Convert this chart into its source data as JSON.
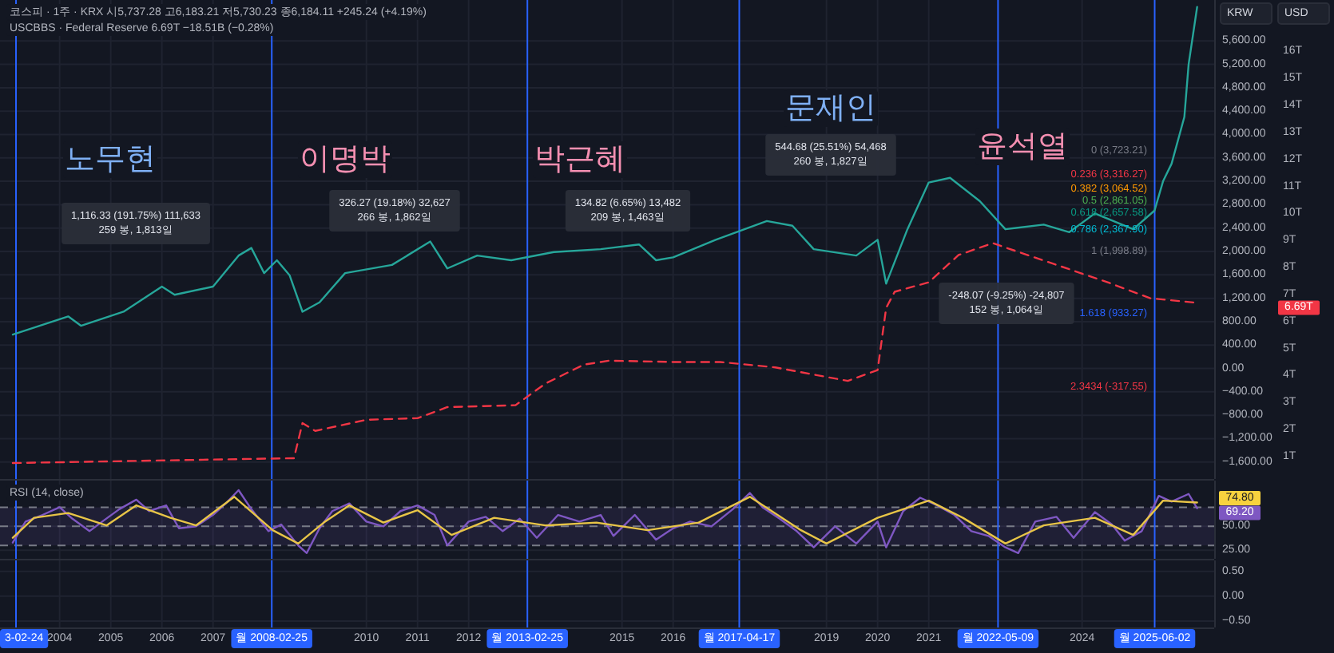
{
  "chart_data": [
    {
      "type": "line",
      "ylabel": "KRW",
      "y2label": "USD",
      "grid": true,
      "tick_labels": "y",
      "xlim": [
        "2002-11",
        "2026-08"
      ],
      "ylim": [
        -1890,
        6300
      ],
      "yticks": [
        {
          "value": 5600,
          "label": "5,600.00"
        },
        {
          "value": 5200,
          "label": "5,200.00"
        },
        {
          "value": 4800,
          "label": "4,800.00"
        },
        {
          "value": 4400,
          "label": "4,400.00"
        },
        {
          "value": 4000,
          "label": "4,000.00"
        },
        {
          "value": 3600,
          "label": "3,600.00"
        },
        {
          "value": 3200,
          "label": "3,200.00"
        },
        {
          "value": 2800,
          "label": "2,800.00"
        },
        {
          "value": 2400,
          "label": "2,400.00"
        },
        {
          "value": 2000,
          "label": "2,000.00"
        },
        {
          "value": 1600,
          "label": "1,600.00"
        },
        {
          "value": 1200,
          "label": "1,200.00"
        },
        {
          "value": 800,
          "label": "800.00"
        },
        {
          "value": 400,
          "label": "400.00"
        },
        {
          "value": 0,
          "label": "0.00"
        },
        {
          "value": -400,
          "label": "−400.00"
        },
        {
          "value": -800,
          "label": "−800.00"
        },
        {
          "value": -1200,
          "label": "−1,200.00"
        },
        {
          "value": -1600,
          "label": "−1,600.00"
        }
      ],
      "y2lim": [
        0.17,
        17.9
      ],
      "y2ticks": [
        {
          "value": 16,
          "label": "16T"
        },
        {
          "value": 15,
          "label": "15T"
        },
        {
          "value": 14,
          "label": "14T"
        },
        {
          "value": 13,
          "label": "13T"
        },
        {
          "value": 12,
          "label": "12T"
        },
        {
          "value": 11,
          "label": "11T"
        },
        {
          "value": 10,
          "label": "10T"
        },
        {
          "value": 9,
          "label": "9T"
        },
        {
          "value": 8,
          "label": "8T"
        },
        {
          "value": 7,
          "label": "7T"
        },
        {
          "value": 6,
          "label": "6T"
        },
        {
          "value": 5,
          "label": "5T"
        },
        {
          "value": 4,
          "label": "4T"
        },
        {
          "value": 3,
          "label": "3T"
        },
        {
          "value": 2,
          "label": "2T"
        },
        {
          "value": 1,
          "label": "1T"
        }
      ],
      "ref_lines": [
        {
          "axis": "x",
          "value": "2003-02-24",
          "color": "#2962ff"
        },
        {
          "axis": "x",
          "value": "2008-02-25",
          "color": "#2962ff"
        },
        {
          "axis": "x",
          "value": "2013-02-25",
          "color": "#2962ff"
        },
        {
          "axis": "x",
          "value": "2017-04-17",
          "color": "#2962ff"
        },
        {
          "axis": "x",
          "value": "2022-05-09",
          "color": "#2962ff"
        },
        {
          "axis": "x",
          "value": "2025-06-02",
          "color": "#2962ff"
        }
      ],
      "series": [
        {
          "color": "#26a69a",
          "x": [
            "2003-02",
            "2004-03",
            "2004-06",
            "2005-04",
            "2006-01",
            "2006-04",
            "2007-01",
            "2007-07",
            "2007-10",
            "2008-01",
            "2008-04",
            "2008-07",
            "2008-10",
            "2009-02",
            "2009-08",
            "2010-07",
            "2011-04",
            "2011-08",
            "2012-03",
            "2012-11",
            "2013-09",
            "2014-08",
            "2015-05",
            "2015-09",
            "2016-01",
            "2016-11",
            "2017-11",
            "2018-05",
            "2018-10",
            "2019-08",
            "2020-01",
            "2020-03",
            "2020-08",
            "2021-01",
            "2021-06",
            "2022-01",
            "2022-07",
            "2023-04",
            "2023-10",
            "2024-04",
            "2025-01",
            "2025-06",
            "2025-08",
            "2025-10",
            "2026-01",
            "2026-02",
            "2026-04"
          ],
          "values": [
            580,
            890,
            730,
            970,
            1400,
            1260,
            1400,
            1930,
            2060,
            1630,
            1850,
            1590,
            970,
            1130,
            1630,
            1770,
            2170,
            1710,
            1930,
            1850,
            1990,
            2040,
            2120,
            1850,
            1900,
            2200,
            2520,
            2440,
            2040,
            1930,
            2200,
            1450,
            2380,
            3180,
            3260,
            2860,
            2380,
            2460,
            2330,
            2650,
            2380,
            2700,
            3200,
            3500,
            4300,
            5200,
            6180
          ]
        },
        {
          "color": "#f23645",
          "axis": "y2",
          "line_style": "dashed",
          "x": [
            "2003-02",
            "2008-08",
            "2008-10",
            "2009-01",
            "2010-01",
            "2011-01",
            "2011-08",
            "2012-12",
            "2013-07",
            "2014-04",
            "2014-10",
            "2016-01",
            "2016-12",
            "2018-01",
            "2019-06",
            "2020-01",
            "2020-03",
            "2020-05",
            "2021-01",
            "2021-08",
            "2022-04",
            "2024-07",
            "2025-05",
            "2026-04"
          ],
          "values": [
            0.76,
            0.94,
            2.24,
            1.95,
            2.36,
            2.42,
            2.83,
            2.9,
            3.7,
            4.4,
            4.55,
            4.5,
            4.5,
            4.3,
            3.8,
            4.2,
            6.5,
            7.1,
            7.45,
            8.46,
            8.9,
            7.45,
            6.86,
            6.69
          ]
        }
      ],
      "annotations": [
        "코스피 · 1주 · KRX 시5,737.28 고6,183.21 저5,730.23 종6,184.11 +245.24 (+4.19%)",
        "USCBBS · Federal Reserve 6.69T −18.51B (−0.28%)",
        "노무현",
        "이명박",
        "박근혜",
        "문재인",
        "윤석열",
        "1,116.33 (191.75%) 111,633\n259 봉, 1,813일",
        "326.27 (19.18%) 32,627\n266 봉, 1,862일",
        "134.82 (6.65%) 13,482\n209 봉, 1,463일",
        "544.68 (25.51%) 54,468\n260 봉, 1,827일",
        "-248.07 (-9.25%) -24,807\n152 봉, 1,064일",
        "0 (3,723.21)",
        "0.236 (3,316.27)",
        "0.382 (3,064.52)",
        "0.5 (2,861.05)",
        "0.618 (2,657.58)",
        "0.786 (2,367.90)",
        "1 (1,998.89)",
        "1.618 (933.27)",
        "2.3434 (-317.55)",
        "6.69T"
      ]
    },
    {
      "type": "line",
      "title": "RSI (14, close)",
      "grid": true,
      "tick_labels": "y",
      "xlim": [
        "2002-11",
        "2026-08"
      ],
      "ylim": [
        16,
        98
      ],
      "yticks": [
        {
          "value": 50,
          "label": "50.00"
        },
        {
          "value": 25,
          "label": "25.00"
        }
      ],
      "bands": [
        {
          "axis": "y",
          "from": 30,
          "to": 70,
          "color": "#7e57c2"
        }
      ],
      "ref_lines": [
        {
          "axis": "y",
          "value": 70,
          "color": "#787b86",
          "line_style": "dashed"
        },
        {
          "axis": "y",
          "value": 50,
          "color": "#787b86",
          "line_style": "dashed"
        },
        {
          "axis": "y",
          "value": 30,
          "color": "#787b86",
          "line_style": "dashed"
        },
        {
          "axis": "x",
          "value": "2003-02-24",
          "color": "#2962ff"
        },
        {
          "axis": "x",
          "value": "2008-02-25",
          "color": "#2962ff"
        },
        {
          "axis": "x",
          "value": "2013-02-25",
          "color": "#2962ff"
        },
        {
          "axis": "x",
          "value": "2017-04-17",
          "color": "#2962ff"
        },
        {
          "axis": "x",
          "value": "2022-05-09",
          "color": "#2962ff"
        },
        {
          "axis": "x",
          "value": "2025-06-02",
          "color": "#2962ff"
        }
      ],
      "series": [
        {
          "color": "#7e57c2",
          "x": [
            "2003-02",
            "2003-05",
            "2003-09",
            "2004-01",
            "2004-04",
            "2004-08",
            "2004-11",
            "2005-03",
            "2005-07",
            "2005-10",
            "2006-02",
            "2006-05",
            "2006-09",
            "2007-01",
            "2007-04",
            "2007-07",
            "2007-10",
            "2008-02",
            "2008-05",
            "2008-09",
            "2008-11",
            "2009-02",
            "2009-05",
            "2009-09",
            "2010-01",
            "2010-05",
            "2010-09",
            "2011-01",
            "2011-05",
            "2011-08",
            "2012-01",
            "2012-05",
            "2012-09",
            "2013-01",
            "2013-05",
            "2013-10",
            "2014-03",
            "2014-08",
            "2014-11",
            "2015-04",
            "2015-09",
            "2016-01",
            "2016-05",
            "2016-10",
            "2017-03",
            "2017-07",
            "2017-10",
            "2018-02",
            "2018-06",
            "2018-10",
            "2019-03",
            "2019-08",
            "2020-01",
            "2020-03",
            "2020-07",
            "2020-11",
            "2021-03",
            "2021-07",
            "2021-11",
            "2022-03",
            "2022-07",
            "2022-10",
            "2023-02",
            "2023-07",
            "2023-11",
            "2024-04",
            "2024-08",
            "2024-11",
            "2025-03",
            "2025-07",
            "2025-10",
            "2026-02",
            "2026-04"
          ],
          "values": [
            33,
            55,
            62,
            70,
            58,
            45,
            55,
            68,
            78,
            66,
            72,
            48,
            50,
            62,
            74,
            88,
            68,
            45,
            52,
            30,
            22,
            48,
            66,
            74,
            55,
            50,
            66,
            72,
            62,
            30,
            55,
            60,
            45,
            58,
            38,
            62,
            55,
            62,
            40,
            62,
            36,
            48,
            55,
            50,
            68,
            85,
            70,
            58,
            45,
            28,
            50,
            32,
            55,
            28,
            66,
            80,
            72,
            62,
            45,
            40,
            28,
            22,
            55,
            60,
            38,
            65,
            52,
            35,
            45,
            82,
            76,
            84,
            69
          ]
        },
        {
          "color": "#e8c547",
          "x": [
            "2003-02",
            "2003-07",
            "2004-03",
            "2004-12",
            "2005-07",
            "2006-03",
            "2006-09",
            "2007-06",
            "2008-03",
            "2008-09",
            "2009-03",
            "2009-09",
            "2010-05",
            "2011-01",
            "2011-09",
            "2012-07",
            "2013-07",
            "2014-07",
            "2015-07",
            "2016-07",
            "2017-07",
            "2018-07",
            "2019-01",
            "2020-01",
            "2021-01",
            "2021-09",
            "2022-07",
            "2023-04",
            "2024-04",
            "2025-01",
            "2025-08",
            "2026-04"
          ],
          "values": [
            38,
            59,
            64,
            51,
            72,
            59,
            51,
            81,
            46,
            32,
            54,
            72,
            54,
            67,
            41,
            59,
            51,
            54,
            46,
            54,
            81,
            46,
            32,
            59,
            77,
            59,
            32,
            51,
            59,
            41,
            77,
            75
          ]
        }
      ],
      "annotations": [
        "74.80",
        "69.20"
      ]
    },
    {
      "type": "line",
      "grid": true,
      "xlim": [
        "2002-11",
        "2026-08"
      ],
      "xticks": [
        {
          "value": "2004",
          "label": "2004"
        },
        {
          "value": "2005",
          "label": "2005"
        },
        {
          "value": "2006",
          "label": "2006"
        },
        {
          "value": "2007",
          "label": "2007"
        },
        {
          "value": "2010",
          "label": "2010"
        },
        {
          "value": "2011",
          "label": "2011"
        },
        {
          "value": "2012",
          "label": "2012"
        },
        {
          "value": "2015",
          "label": "2015"
        },
        {
          "value": "2016",
          "label": "2016"
        },
        {
          "value": "2019",
          "label": "2019"
        },
        {
          "value": "2020",
          "label": "2020"
        },
        {
          "value": "2021",
          "label": "2021"
        },
        {
          "value": "2024",
          "label": "2024"
        }
      ],
      "ylim": [
        -0.63,
        0.72
      ],
      "yticks": [
        {
          "value": 0.5,
          "label": "0.50"
        },
        {
          "value": 0,
          "label": "0.00"
        },
        {
          "value": -0.5,
          "label": "−0.50"
        }
      ],
      "ref_lines": [
        {
          "axis": "x",
          "value": "2003-02-24",
          "label": "3-02-24",
          "color": "#2962ff"
        },
        {
          "axis": "x",
          "value": "2008-02-25",
          "label": "월 2008-02-25",
          "color": "#2962ff"
        },
        {
          "axis": "x",
          "value": "2013-02-25",
          "label": "월 2013-02-25",
          "color": "#2962ff"
        },
        {
          "axis": "x",
          "value": "2017-04-17",
          "label": "월 2017-04-17",
          "color": "#2962ff"
        },
        {
          "axis": "x",
          "value": "2022-05-09",
          "label": "월 2022-05-09",
          "color": "#2962ff"
        },
        {
          "axis": "x",
          "value": "2025-06-02",
          "label": "월 2025-06-02",
          "color": "#2962ff"
        }
      ]
    }
  ]
}
